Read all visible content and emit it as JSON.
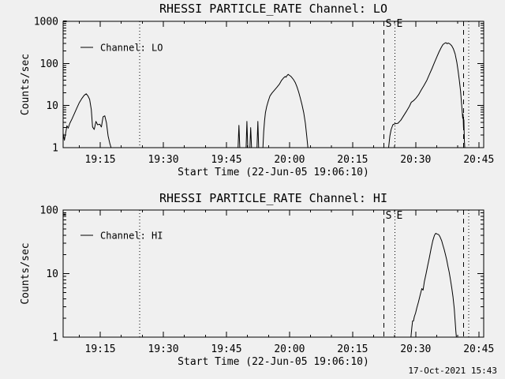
{
  "meta": {
    "background": "#f0f0f0",
    "foreground": "#000000",
    "timestamp": "17-Oct-2021 15:43"
  },
  "x_axis": {
    "label": "Start Time (22-Jun-05 19:06:10)",
    "start_time": "22-Jun-05 19:06:10",
    "range_minutes": [
      0,
      100
    ],
    "major_ticks": [
      {
        "t": 8.833,
        "label": "19:15"
      },
      {
        "t": 23.833,
        "label": "19:30"
      },
      {
        "t": 38.833,
        "label": "19:45"
      },
      {
        "t": 53.833,
        "label": "20:00"
      },
      {
        "t": 68.833,
        "label": "20:15"
      },
      {
        "t": 83.833,
        "label": "20:30"
      },
      {
        "t": 98.833,
        "label": "20:45"
      }
    ],
    "minor_tick_offset": 3.833,
    "minor_tick_every_minutes": 5
  },
  "reference_lines": [
    {
      "t": 18.2,
      "style": "dotted",
      "label": ""
    },
    {
      "t": 76.3,
      "style": "dashed",
      "label": "S"
    },
    {
      "t": 78.9,
      "style": "dotted",
      "label": "E"
    },
    {
      "t": 95.25,
      "style": "dashed",
      "label": ""
    },
    {
      "t": 96.4,
      "style": "dotted",
      "label": ""
    }
  ],
  "chart_data": [
    {
      "type": "line",
      "title": "RHESSI PARTICLE_RATE Channel: LO",
      "ylabel": "Counts/sec",
      "xlabel": "Start Time (22-Jun-05 19:06:10)",
      "legend": "Channel: LO",
      "ylim": [
        1,
        1000
      ],
      "yticks": [
        {
          "v": 1,
          "label": "1"
        },
        {
          "v": 10,
          "label": "10"
        },
        {
          "v": 100,
          "label": "100"
        },
        {
          "v": 1000,
          "label": "1000"
        }
      ],
      "segments": [
        [
          [
            0,
            1000
          ],
          [
            0.85,
            1000
          ]
        ],
        [
          [
            0,
            2.2
          ],
          [
            0.3,
            1.5
          ],
          [
            0.6,
            2.2
          ],
          [
            0.9,
            3.3
          ],
          [
            1.2,
            2.9
          ],
          [
            1.6,
            3.8
          ],
          [
            2.1,
            4.8
          ],
          [
            2.7,
            6.5
          ],
          [
            3.2,
            8.5
          ],
          [
            3.8,
            11.5
          ],
          [
            4.4,
            14.5
          ],
          [
            5.0,
            17.5
          ],
          [
            5.5,
            19
          ],
          [
            5.9,
            17
          ],
          [
            6.3,
            14
          ],
          [
            6.7,
            8
          ],
          [
            7.0,
            3.1
          ],
          [
            7.4,
            2.7
          ],
          [
            7.8,
            4.2
          ],
          [
            8.2,
            3.5
          ],
          [
            8.7,
            3.6
          ],
          [
            9.1,
            3.1
          ],
          [
            9.5,
            5.4
          ],
          [
            9.9,
            5.7
          ],
          [
            10.3,
            3.9
          ],
          [
            10.7,
            1.9
          ],
          [
            11.1,
            1.25
          ],
          [
            11.4,
            1.0
          ]
        ],
        [
          [
            41.6,
            1
          ],
          [
            41.8,
            3.4
          ],
          [
            42.0,
            1
          ]
        ],
        [
          [
            43.5,
            1
          ],
          [
            43.7,
            4.2
          ],
          [
            43.9,
            1
          ]
        ],
        [
          [
            44.4,
            1
          ],
          [
            44.6,
            3.0
          ],
          [
            44.8,
            1
          ]
        ],
        [
          [
            46.1,
            1
          ],
          [
            46.3,
            4.2
          ],
          [
            46.5,
            1
          ]
        ],
        [
          [
            47.5,
            1
          ],
          [
            47.7,
            2.4
          ],
          [
            47.9,
            4.4
          ],
          [
            48.1,
            6.8
          ],
          [
            48.4,
            9.5
          ],
          [
            48.8,
            13
          ],
          [
            49.2,
            17
          ],
          [
            49.7,
            20
          ],
          [
            50.2,
            23
          ],
          [
            50.8,
            27
          ],
          [
            51.4,
            32
          ],
          [
            51.9,
            39
          ],
          [
            52.4,
            45
          ],
          [
            52.8,
            49
          ],
          [
            53.0,
            47
          ],
          [
            53.2,
            51
          ],
          [
            53.5,
            55
          ],
          [
            53.8,
            52
          ],
          [
            54.1,
            50
          ],
          [
            54.4,
            46
          ],
          [
            54.8,
            41
          ],
          [
            55.2,
            35
          ],
          [
            55.6,
            28
          ],
          [
            56.0,
            21
          ],
          [
            56.4,
            15
          ],
          [
            56.8,
            10.5
          ],
          [
            57.2,
            6.8
          ],
          [
            57.6,
            3.8
          ],
          [
            57.9,
            2.0
          ],
          [
            58.2,
            1.0
          ]
        ],
        [
          [
            77.4,
            1
          ],
          [
            77.7,
            1.9
          ],
          [
            78.0,
            2.7
          ],
          [
            78.4,
            3.5
          ],
          [
            78.9,
            3.7
          ],
          [
            79.6,
            3.8
          ],
          [
            80.3,
            4.5
          ],
          [
            81.0,
            5.8
          ],
          [
            81.7,
            7.5
          ],
          [
            82.3,
            9.5
          ],
          [
            82.8,
            12
          ],
          [
            83.3,
            13
          ],
          [
            83.9,
            15
          ],
          [
            84.5,
            18
          ],
          [
            85.1,
            23
          ],
          [
            85.8,
            30
          ],
          [
            86.5,
            40
          ],
          [
            87.1,
            55
          ],
          [
            87.7,
            75
          ],
          [
            88.3,
            105
          ],
          [
            88.9,
            145
          ],
          [
            89.4,
            190
          ],
          [
            89.9,
            240
          ],
          [
            90.3,
            280
          ],
          [
            90.7,
            300
          ],
          [
            91.0,
            312
          ],
          [
            91.3,
            295
          ],
          [
            91.6,
            305
          ],
          [
            92.0,
            288
          ],
          [
            92.4,
            262
          ],
          [
            92.8,
            222
          ],
          [
            93.2,
            168
          ],
          [
            93.6,
            108
          ],
          [
            93.9,
            68
          ],
          [
            94.2,
            40
          ],
          [
            94.5,
            22
          ],
          [
            94.7,
            12
          ],
          [
            94.9,
            7
          ],
          [
            95.0,
            5
          ],
          [
            95.1,
            6.2
          ],
          [
            95.2,
            3
          ],
          [
            95.3,
            4.6
          ],
          [
            95.4,
            1.5
          ],
          [
            95.5,
            1.0
          ]
        ]
      ]
    },
    {
      "type": "line",
      "title": "RHESSI PARTICLE_RATE Channel: HI",
      "ylabel": "Counts/sec",
      "xlabel": "Start Time (22-Jun-05 19:06:10)",
      "legend": "Channel: HI",
      "ylim": [
        1,
        100
      ],
      "yticks": [
        {
          "v": 1,
          "label": "1"
        },
        {
          "v": 10,
          "label": "10"
        },
        {
          "v": 100,
          "label": "100"
        }
      ],
      "segments": [
        [
          [
            0,
            85
          ],
          [
            0.7,
            85
          ]
        ],
        [
          [
            82.7,
            1
          ],
          [
            82.9,
            1.4
          ],
          [
            83.1,
            1.8
          ],
          [
            83.3,
            1.8
          ],
          [
            83.5,
            2.1
          ],
          [
            83.8,
            2.4
          ],
          [
            84.1,
            2.9
          ],
          [
            84.5,
            3.6
          ],
          [
            84.9,
            4.6
          ],
          [
            85.3,
            5.8
          ],
          [
            85.6,
            5.5
          ],
          [
            85.9,
            7.5
          ],
          [
            86.3,
            10
          ],
          [
            86.7,
            13.5
          ],
          [
            87.1,
            18
          ],
          [
            87.5,
            25
          ],
          [
            87.9,
            33
          ],
          [
            88.3,
            40
          ],
          [
            88.6,
            43
          ],
          [
            88.9,
            42
          ],
          [
            89.3,
            41
          ],
          [
            89.6,
            38
          ],
          [
            90.0,
            33
          ],
          [
            90.3,
            28
          ],
          [
            90.6,
            24
          ],
          [
            90.9,
            20
          ],
          [
            91.2,
            16.5
          ],
          [
            91.5,
            13
          ],
          [
            91.8,
            10.5
          ],
          [
            92.1,
            8
          ],
          [
            92.4,
            6
          ],
          [
            92.7,
            4.3
          ],
          [
            93.0,
            2.8
          ],
          [
            93.2,
            1.8
          ],
          [
            93.4,
            1.2
          ],
          [
            93.5,
            1.0
          ]
        ]
      ]
    }
  ]
}
